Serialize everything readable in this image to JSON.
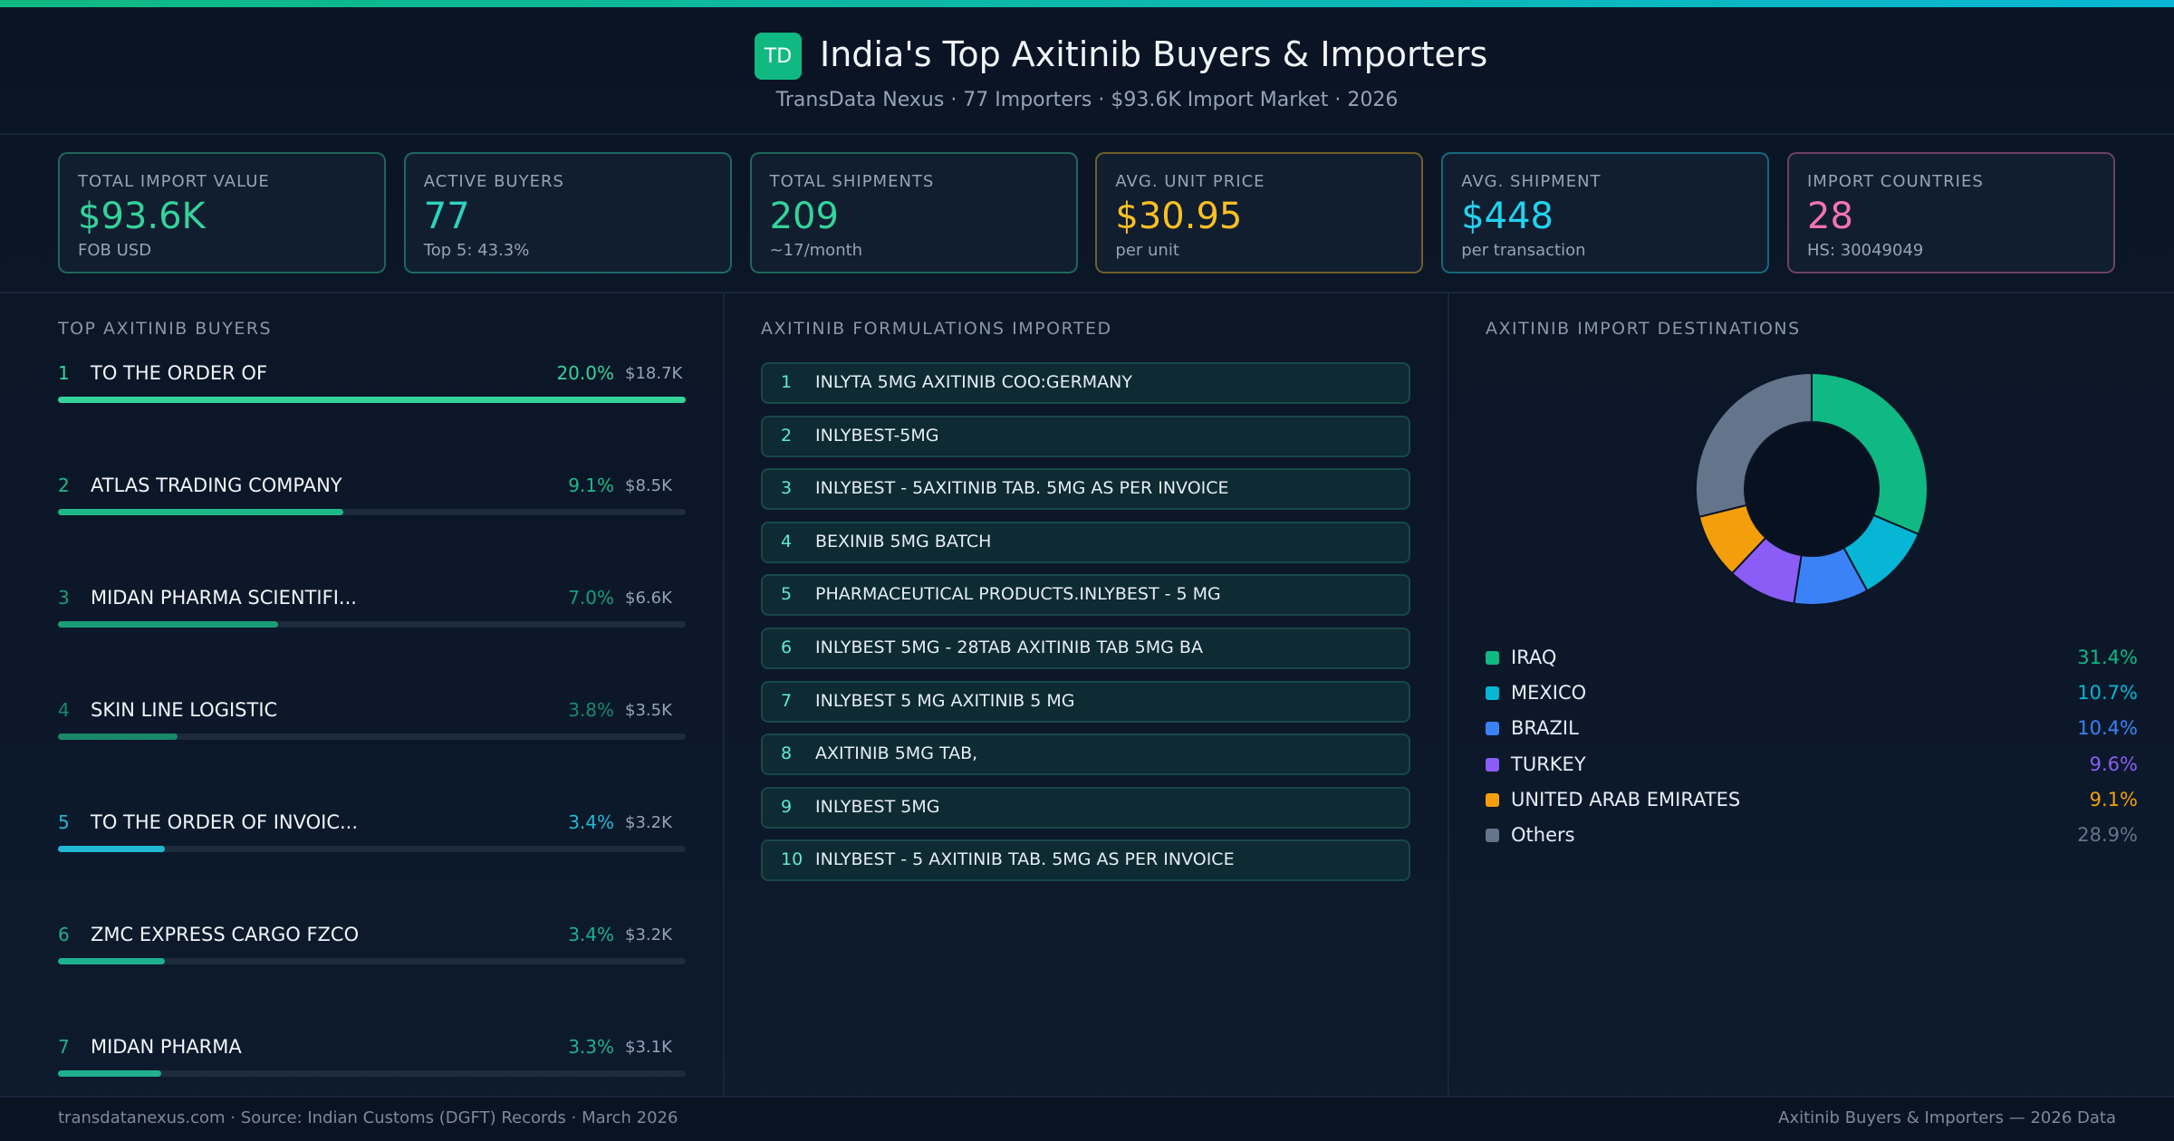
{
  "header": {
    "logo": "TD",
    "title": "India's Top Axitinib Buyers & Importers",
    "subtitle": "TransData Nexus · 77 Importers · $93.6K Import Market · 2026"
  },
  "kpis": [
    {
      "label": "TOTAL IMPORT VALUE",
      "value": "$93.6K",
      "sub": "FOB USD",
      "color": "#34d399"
    },
    {
      "label": "ACTIVE BUYERS",
      "value": "77",
      "sub": "Top 5: 43.3%",
      "color": "#2dd4bf"
    },
    {
      "label": "TOTAL SHIPMENTS",
      "value": "209",
      "sub": "~17/month",
      "color": "#34d399"
    },
    {
      "label": "AVG. UNIT PRICE",
      "value": "$30.95",
      "sub": "per unit",
      "color": "#fbbf24"
    },
    {
      "label": "AVG. SHIPMENT",
      "value": "$448",
      "sub": "per transaction",
      "color": "#22d3ee"
    },
    {
      "label": "IMPORT COUNTRIES",
      "value": "28",
      "sub": "HS: 30049049",
      "color": "#f472b6"
    }
  ],
  "buyers": {
    "title": "TOP AXITINIB BUYERS",
    "rows": [
      {
        "rank": 1,
        "name": "TO THE ORDER OF",
        "share": 20.0,
        "share_label": "20.0%",
        "value": 18700,
        "value_label": "$18.7K",
        "color": "#34d399"
      },
      {
        "rank": 2,
        "name": "ATLAS TRADING COMPANY",
        "share": 9.1,
        "share_label": "9.1%",
        "value": 8500,
        "value_label": "$8.5K",
        "color": "#1fb889"
      },
      {
        "rank": 3,
        "name": "MIDAN PHARMA SCIENTIFI...",
        "share": 7.0,
        "share_label": "7.0%",
        "value": 6600,
        "value_label": "$6.6K",
        "color": "#199e78"
      },
      {
        "rank": 4,
        "name": "SKIN LINE LOGISTIC",
        "share": 3.8,
        "share_label": "3.8%",
        "value": 3500,
        "value_label": "$3.5K",
        "color": "#17896a"
      },
      {
        "rank": 5,
        "name": "TO THE ORDER OF INVOIC...",
        "share": 3.4,
        "share_label": "3.4%",
        "value": 3200,
        "value_label": "$3.2K",
        "color": "#22b8d4"
      },
      {
        "rank": 6,
        "name": "ZMC EXPRESS CARGO FZCO",
        "share": 3.4,
        "share_label": "3.4%",
        "value": 3200,
        "value_label": "$3.2K",
        "color": "#1fb08f"
      },
      {
        "rank": 7,
        "name": "MIDAN PHARMA",
        "share": 3.3,
        "share_label": "3.3%",
        "value": 3100,
        "value_label": "$3.1K",
        "color": "#1fb08f"
      }
    ]
  },
  "formulations": {
    "title": "AXITINIB FORMULATIONS IMPORTED",
    "items": [
      {
        "rank": 1,
        "name": "INLYTA 5MG AXITINIB COO:GERMANY"
      },
      {
        "rank": 2,
        "name": "INLYBEST-5MG"
      },
      {
        "rank": 3,
        "name": "INLYBEST - 5AXITINIB TAB. 5MG AS PER INVOICE"
      },
      {
        "rank": 4,
        "name": "BEXINIB 5MG BATCH"
      },
      {
        "rank": 5,
        "name": "PHARMACEUTICAL PRODUCTS.INLYBEST - 5 MG"
      },
      {
        "rank": 6,
        "name": "INLYBEST 5MG - 28TAB AXITINIB TAB 5MG BA"
      },
      {
        "rank": 7,
        "name": "INLYBEST 5 MG AXITINIB 5 MG"
      },
      {
        "rank": 8,
        "name": "AXITINIB 5MG TAB,"
      },
      {
        "rank": 9,
        "name": "INLYBEST 5MG"
      },
      {
        "rank": 10,
        "name": "INLYBEST - 5 AXITINIB TAB. 5MG AS PER INVOICE"
      }
    ]
  },
  "destinations": {
    "title": "AXITINIB IMPORT DESTINATIONS",
    "chart_data": {
      "type": "pie",
      "categories": [
        "IRAQ",
        "MEXICO",
        "BRAZIL",
        "TURKEY",
        "UNITED ARAB EMIRATES",
        "Others"
      ],
      "values": [
        31.4,
        10.7,
        10.4,
        9.6,
        9.1,
        28.9
      ],
      "value_labels": [
        "31.4%",
        "10.7%",
        "10.4%",
        "9.6%",
        "9.1%",
        "28.9%"
      ],
      "colors": [
        "#10b981",
        "#06b6d4",
        "#3b82f6",
        "#8b5cf6",
        "#f59e0b",
        "#64748b"
      ]
    }
  },
  "footer": {
    "left": "transdatanexus.com · Source: Indian Customs (DGFT) Records · March 2026",
    "right": "Axitinib Buyers & Importers — 2026 Data"
  }
}
